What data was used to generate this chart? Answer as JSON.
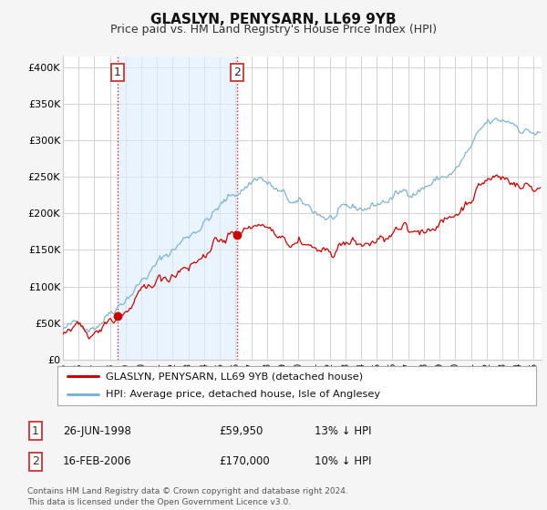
{
  "title": "GLASLYN, PENYSARN, LL69 9YB",
  "subtitle": "Price paid vs. HM Land Registry's House Price Index (HPI)",
  "ylabel_ticks": [
    "£0",
    "£50K",
    "£100K",
    "£150K",
    "£200K",
    "£250K",
    "£300K",
    "£350K",
    "£400K"
  ],
  "ytick_vals": [
    0,
    50000,
    100000,
    150000,
    200000,
    250000,
    300000,
    350000,
    400000
  ],
  "ylim": [
    0,
    415000
  ],
  "xlim_start": 1995.0,
  "xlim_end": 2025.5,
  "sale1_date": 1998.48,
  "sale1_price": 59950,
  "sale2_date": 2006.12,
  "sale2_price": 170000,
  "legend_red": "GLASLYN, PENYSARN, LL69 9YB (detached house)",
  "legend_blue": "HPI: Average price, detached house, Isle of Anglesey",
  "table_row1": [
    "1",
    "26-JUN-1998",
    "£59,950",
    "13% ↓ HPI"
  ],
  "table_row2": [
    "2",
    "16-FEB-2006",
    "£170,000",
    "10% ↓ HPI"
  ],
  "footer": "Contains HM Land Registry data © Crown copyright and database right 2024.\nThis data is licensed under the Open Government Licence v3.0.",
  "background_color": "#f5f5f5",
  "plot_bg_color": "#ffffff",
  "shade_color": "#ddeeff",
  "grid_color": "#cccccc",
  "red_line_color": "#cc0000",
  "blue_line_color": "#7fb3d3",
  "title_fontsize": 11,
  "subtitle_fontsize": 9
}
